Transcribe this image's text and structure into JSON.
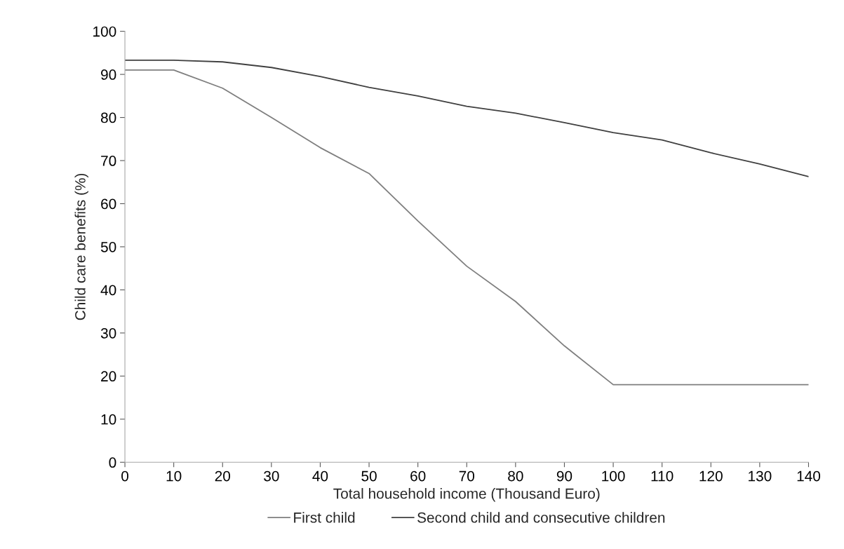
{
  "chart_data": {
    "type": "line",
    "xlabel": "Total household income (Thousand Euro)",
    "ylabel": "Child care benefits (%)",
    "x": [
      0,
      10,
      20,
      30,
      40,
      50,
      60,
      70,
      80,
      90,
      100,
      110,
      120,
      130,
      140
    ],
    "series": [
      {
        "name": "First child",
        "color": "#7f7f7f",
        "values": [
          91,
          91,
          86.8,
          80,
          73,
          67,
          56,
          45.5,
          37.3,
          27,
          18,
          18,
          18,
          18,
          18
        ]
      },
      {
        "name": "Second child and consecutive children",
        "color": "#404040",
        "values": [
          93.3,
          93.3,
          92.9,
          91.6,
          89.5,
          87,
          85,
          82.6,
          81,
          78.8,
          76.5,
          74.8,
          71.8,
          69.2,
          66.3
        ]
      }
    ],
    "xlim": [
      0,
      140
    ],
    "xticks": [
      0,
      10,
      20,
      30,
      40,
      50,
      60,
      70,
      80,
      90,
      100,
      110,
      120,
      130,
      140
    ],
    "ylim": [
      0,
      100
    ],
    "yticks": [
      0,
      10,
      20,
      30,
      40,
      50,
      60,
      70,
      80,
      90,
      100
    ],
    "grid": false,
    "legend": "bottom",
    "marker": "none",
    "line_style": "solid"
  }
}
